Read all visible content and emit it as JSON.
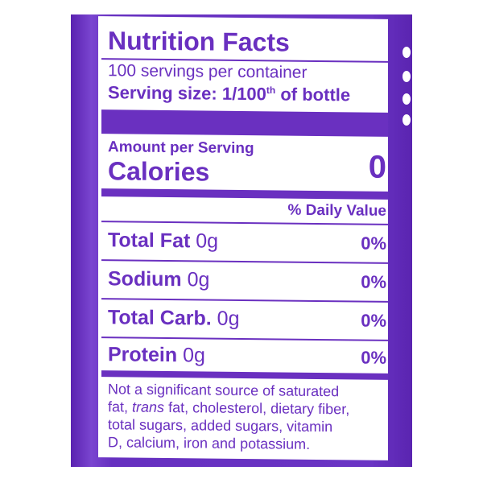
{
  "label": {
    "title": "Nutrition Facts",
    "servings": "100 servings per container",
    "serving_size_label": "Serving size:",
    "serving_size_value": "1/100",
    "serving_size_sup": "th",
    "serving_size_suffix": "of bottle",
    "amount_per_serving": "Amount per Serving",
    "calories_label": "Calories",
    "calories_value": "0",
    "daily_value_header": "% Daily Value",
    "nutrients": [
      {
        "name": "Total Fat",
        "amount": "0g",
        "dv": "0%"
      },
      {
        "name": "Sodium",
        "amount": "0g",
        "dv": "0%"
      },
      {
        "name": "Total Carb.",
        "amount": "0g",
        "dv": "0%"
      },
      {
        "name": "Protein",
        "amount": "0g",
        "dv": "0%"
      }
    ],
    "footnote_1": "Not a significant source of saturated",
    "footnote_2a": "fat,",
    "footnote_2b": "trans",
    "footnote_2c": "fat, cholesterol, dietary fiber,",
    "footnote_3": "total sugars, added sugars, vitamin",
    "footnote_4": "D, calcium, iron and potassium."
  },
  "colors": {
    "label_purple": "#6a30c0",
    "background": "#ffffff"
  }
}
